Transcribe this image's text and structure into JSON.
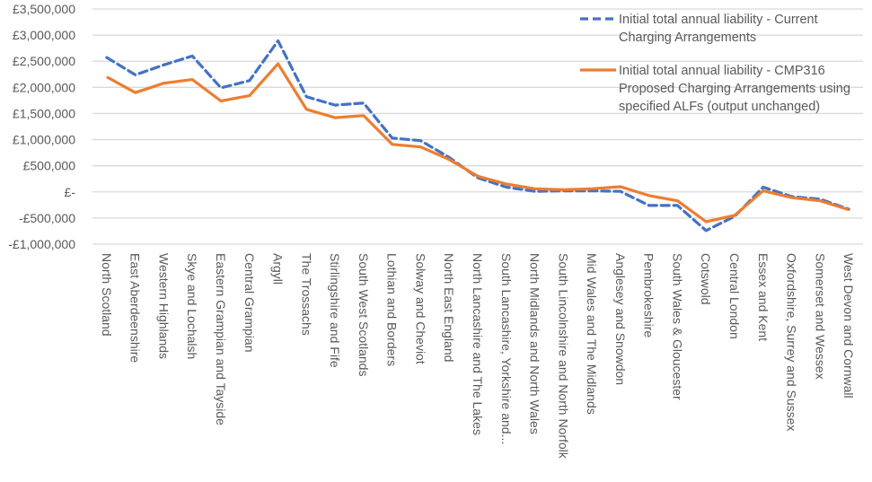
{
  "chart_data": {
    "type": "line",
    "title": "",
    "xlabel": "",
    "ylabel": "",
    "ylim": [
      -1000000,
      3500000
    ],
    "ytick_step": 500000,
    "yticks": [
      "-£1,000,000",
      "-£500,000",
      "£-",
      "£500,000",
      "£1,000,000",
      "£1,500,000",
      "£2,000,000",
      "£2,500,000",
      "£3,000,000",
      "£3,500,000"
    ],
    "grid": true,
    "legend_position": "top-right",
    "categories": [
      "North Scotland",
      "East Aberdeenshire",
      "Western Highlands",
      "Skye and Lochalsh",
      "Eastern Grampian and Tayside",
      "Central Grampian",
      "Argyll",
      "The Trossachs",
      "Stirlingshire and Fife",
      "South West Scotlands",
      "Lothian and Borders",
      "Solway and Cheviot",
      "North East England",
      "North Lancashire and The Lakes",
      "South Lancashire, Yorkshire and...",
      "North Midlands and North Wales",
      "South Lincolnshire and North Norfolk",
      "Mid Wales and The Midlands",
      "Anglesey and Snowdon",
      "Pembrokeshire",
      "South Wales & Gloucester",
      "Cotswold",
      "Central London",
      "Essex and Kent",
      "Oxfordshire, Surrey and Sussex",
      "Somerset and Wessex",
      "West Devon and Cornwall"
    ],
    "series": [
      {
        "name": "Initial total annual liability - Current Charging Arrangements",
        "legend_lines": [
          "Initial total annual liability - Current",
          "Charging Arrangements"
        ],
        "color": "#4472C4",
        "style": "dashed",
        "values": [
          2570000,
          2240000,
          2430000,
          2600000,
          1990000,
          2130000,
          2890000,
          1820000,
          1660000,
          1700000,
          1030000,
          980000,
          660000,
          270000,
          90000,
          10000,
          20000,
          20000,
          10000,
          -260000,
          -260000,
          -740000,
          -470000,
          90000,
          -90000,
          -140000,
          -330000
        ]
      },
      {
        "name": "Initial total annual liability - CMP316 Proposed Charging Arrangements using specified ALFs (output unchanged)",
        "legend_lines": [
          "Initial total annual liability - CMP316",
          "Proposed Charging Arrangements using",
          "specified ALFs (output unchanged)"
        ],
        "color": "#ED7D31",
        "style": "solid",
        "values": [
          2200000,
          1900000,
          2080000,
          2150000,
          1740000,
          1840000,
          2450000,
          1580000,
          1420000,
          1460000,
          910000,
          860000,
          620000,
          300000,
          150000,
          60000,
          40000,
          60000,
          100000,
          -70000,
          -170000,
          -570000,
          -450000,
          20000,
          -110000,
          -170000,
          -340000
        ]
      }
    ]
  }
}
